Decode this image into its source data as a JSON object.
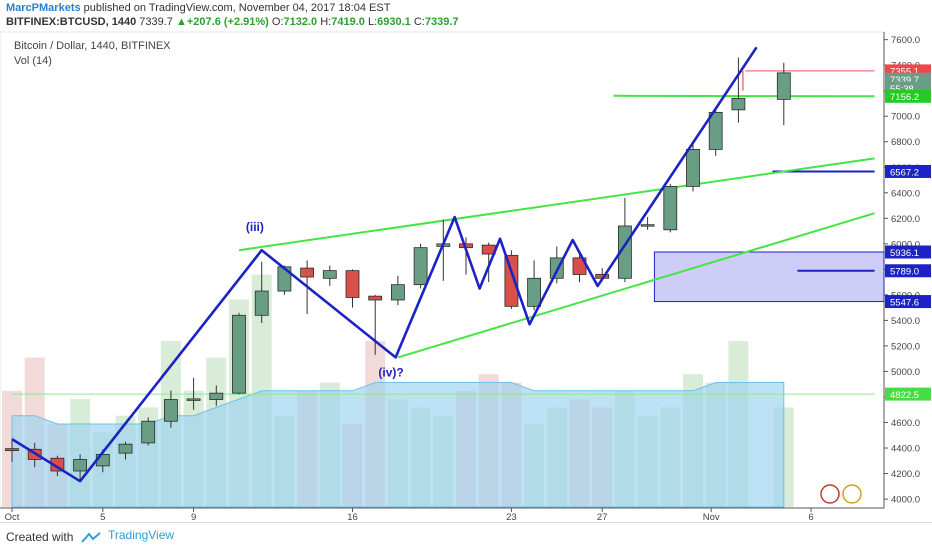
{
  "header": {
    "author": "MarcPMarkets",
    "published_text": " published on TradingView.com, November 04, 2017 18:04 EST",
    "symbol": "BITFINEX:BTCUSD, 1440",
    "last": "7339.7",
    "change": "+207.6 (+2.91%)",
    "o_label": "O:",
    "o_value": "7132.0",
    "h_label": "H:",
    "h_value": "7419.0",
    "l_label": "L:",
    "l_value": "6930.1",
    "c_label": "C:",
    "c_value": "7339.7"
  },
  "chart_title": "Bitcoin / Dollar, 1440, BITFINEX",
  "volume_label": "Vol (14)",
  "footer": {
    "created": "Created with",
    "brand": "TradingView"
  },
  "colors": {
    "up": "#6a9e84",
    "down": "#d9504a",
    "wave": "#1c22c4",
    "trend": "#44e544",
    "vol_up": "#d4ead4",
    "vol_down": "#f0d6d4",
    "vol_ma": "#9bd3f0",
    "box": "#b8b8f4"
  },
  "chart_data": {
    "type": "candlestick",
    "x_tick_labels": [
      "Oct",
      "5",
      "9",
      "16",
      "23",
      "27",
      "Nov",
      "6"
    ],
    "y_tick_labels": [
      "4000.0",
      "4200.0",
      "4400.0",
      "4600.0",
      "4800.0",
      "5000.0",
      "5200.0",
      "5400.0",
      "5600.0",
      "5800.0",
      "6000.0",
      "6200.0",
      "6400.0",
      "6600.0",
      "6800.0",
      "7000.0",
      "7200.0",
      "7400.0",
      "7600.0"
    ],
    "ylim": [
      3930,
      7660
    ],
    "candles": [
      {
        "o": 4395,
        "h": 4470,
        "l": 4290,
        "c": 4380
      },
      {
        "o": 4390,
        "h": 4440,
        "l": 4250,
        "c": 4310
      },
      {
        "o": 4320,
        "h": 4340,
        "l": 4180,
        "c": 4220
      },
      {
        "o": 4220,
        "h": 4350,
        "l": 4150,
        "c": 4310
      },
      {
        "o": 4260,
        "h": 4390,
        "l": 4210,
        "c": 4350
      },
      {
        "o": 4360,
        "h": 4450,
        "l": 4310,
        "c": 4430
      },
      {
        "o": 4440,
        "h": 4640,
        "l": 4420,
        "c": 4610
      },
      {
        "o": 4610,
        "h": 4850,
        "l": 4560,
        "c": 4780
      },
      {
        "o": 4780,
        "h": 4950,
        "l": 4700,
        "c": 4785
      },
      {
        "o": 4780,
        "h": 4890,
        "l": 4730,
        "c": 4830
      },
      {
        "o": 4830,
        "h": 5460,
        "l": 4820,
        "c": 5440
      },
      {
        "o": 5440,
        "h": 5860,
        "l": 5380,
        "c": 5630
      },
      {
        "o": 5630,
        "h": 5830,
        "l": 5600,
        "c": 5820
      },
      {
        "o": 5810,
        "h": 5870,
        "l": 5450,
        "c": 5740
      },
      {
        "o": 5730,
        "h": 5830,
        "l": 5670,
        "c": 5790
      },
      {
        "o": 5790,
        "h": 5800,
        "l": 5500,
        "c": 5580
      },
      {
        "o": 5590,
        "h": 5600,
        "l": 5130,
        "c": 5560
      },
      {
        "o": 5560,
        "h": 5750,
        "l": 5520,
        "c": 5680
      },
      {
        "o": 5680,
        "h": 6000,
        "l": 5650,
        "c": 5970
      },
      {
        "o": 5980,
        "h": 6190,
        "l": 5710,
        "c": 6000
      },
      {
        "o": 6000,
        "h": 6050,
        "l": 5760,
        "c": 5970
      },
      {
        "o": 5990,
        "h": 6010,
        "l": 5700,
        "c": 5920
      },
      {
        "o": 5910,
        "h": 5950,
        "l": 5490,
        "c": 5510
      },
      {
        "o": 5510,
        "h": 5870,
        "l": 5480,
        "c": 5730
      },
      {
        "o": 5730,
        "h": 5980,
        "l": 5690,
        "c": 5890
      },
      {
        "o": 5890,
        "h": 5930,
        "l": 5700,
        "c": 5760
      },
      {
        "o": 5760,
        "h": 5810,
        "l": 5710,
        "c": 5730
      },
      {
        "o": 5730,
        "h": 6360,
        "l": 5700,
        "c": 6140
      },
      {
        "o": 6140,
        "h": 6210,
        "l": 6110,
        "c": 6150
      },
      {
        "o": 6110,
        "h": 6470,
        "l": 6090,
        "c": 6450
      },
      {
        "o": 6450,
        "h": 6780,
        "l": 6410,
        "c": 6740
      },
      {
        "o": 6740,
        "h": 7050,
        "l": 6690,
        "c": 7030
      },
      {
        "o": 7050,
        "h": 7460,
        "l": 6950,
        "c": 7140
      },
      {
        "o": 7132,
        "h": 7419,
        "l": 6930.1,
        "c": 7339.7
      }
    ],
    "candle_days": [
      0,
      1,
      2,
      3,
      4,
      5,
      6,
      7,
      8,
      9,
      10,
      11,
      12,
      13,
      14,
      15,
      16,
      17,
      18,
      19,
      20,
      21,
      22,
      23,
      24,
      25,
      26,
      27,
      28,
      29,
      30,
      31,
      32,
      34
    ],
    "volume": [
      14,
      18,
      10,
      13,
      9,
      11,
      12,
      20,
      14,
      18,
      25,
      28,
      11,
      14,
      15,
      10,
      20,
      13,
      12,
      11,
      14,
      16,
      15,
      10,
      12,
      13,
      12,
      14,
      11,
      12,
      16,
      15,
      20,
      12
    ],
    "volume_ma": [
      11,
      11,
      10,
      10,
      10,
      10,
      10,
      11,
      11,
      12,
      13,
      14,
      14,
      14,
      14,
      14,
      15,
      15,
      15,
      15,
      15,
      15,
      15,
      14,
      14,
      14,
      14,
      14,
      14,
      14,
      14,
      15,
      15,
      15
    ],
    "price_labels": [
      {
        "price": 7355.1,
        "text": "7355.1",
        "bg": "#f04848"
      },
      {
        "price": 7290,
        "text": "7339.7",
        "bg": "#6a9e84"
      },
      {
        "price": 7220,
        "text": "55:38",
        "bg": "#6a9e84"
      },
      {
        "price": 7156.2,
        "text": "7156.2",
        "bg": "#22cc22"
      },
      {
        "price": 6567.2,
        "text": "6567.2",
        "bg": "#1c22c4"
      },
      {
        "price": 5936.1,
        "text": "5936.1",
        "bg": "#1c22c4"
      },
      {
        "price": 5789.0,
        "text": "5789.0",
        "bg": "#1c22c4"
      },
      {
        "price": 5547.6,
        "text": "5547.6",
        "bg": "#1c22c4"
      },
      {
        "price": 4822.5,
        "text": "4822.5",
        "bg": "#44dd44"
      }
    ],
    "wave_labels": [
      {
        "text": "(iii)",
        "day": 10.7,
        "price": 6100
      },
      {
        "text": "(iv)?",
        "day": 16.7,
        "price": 4960
      }
    ],
    "wave_points": [
      [
        0,
        4470
      ],
      [
        3,
        4140
      ],
      [
        11,
        5950
      ],
      [
        16.9,
        5110
      ],
      [
        19.5,
        6210
      ],
      [
        20.6,
        5650
      ],
      [
        21.5,
        6040
      ],
      [
        22.8,
        5370
      ],
      [
        24.7,
        6030
      ],
      [
        25.8,
        5670
      ],
      [
        32.8,
        7540
      ]
    ],
    "trend_lines": [
      {
        "d1": 10,
        "p1": 5950,
        "d2": 38,
        "p2": 6670
      },
      {
        "d1": 17,
        "p1": 5110,
        "d2": 38,
        "p2": 6240
      },
      {
        "d1": 26.5,
        "p1": 7160,
        "d2": 38,
        "p2": 7156.2
      }
    ],
    "levels": [
      {
        "d1": 32.3,
        "d2": 38,
        "price": 7355.1,
        "color": "#f28c8c",
        "w": 1.5
      },
      {
        "d1": 32.2,
        "d2": 32.2,
        "price": 7355.1,
        "color": "#e03030",
        "w": 1
      },
      {
        "d1": 33.5,
        "d2": 38,
        "price": 6567.2,
        "color": "#1c22c4",
        "w": 2
      },
      {
        "d1": 34.6,
        "d2": 38,
        "price": 5789.0,
        "color": "#1c22c4",
        "w": 2
      },
      {
        "d1": 0,
        "d2": 38,
        "price": 4822.5,
        "color": "#8fe88f",
        "w": 1
      }
    ],
    "box": {
      "d1": 28.3,
      "d2": 38,
      "p1": 5547.6,
      "p2": 5936.1
    },
    "x_ticks_days": [
      0,
      4,
      8,
      15,
      22,
      26,
      30.8,
      35.2
    ]
  }
}
